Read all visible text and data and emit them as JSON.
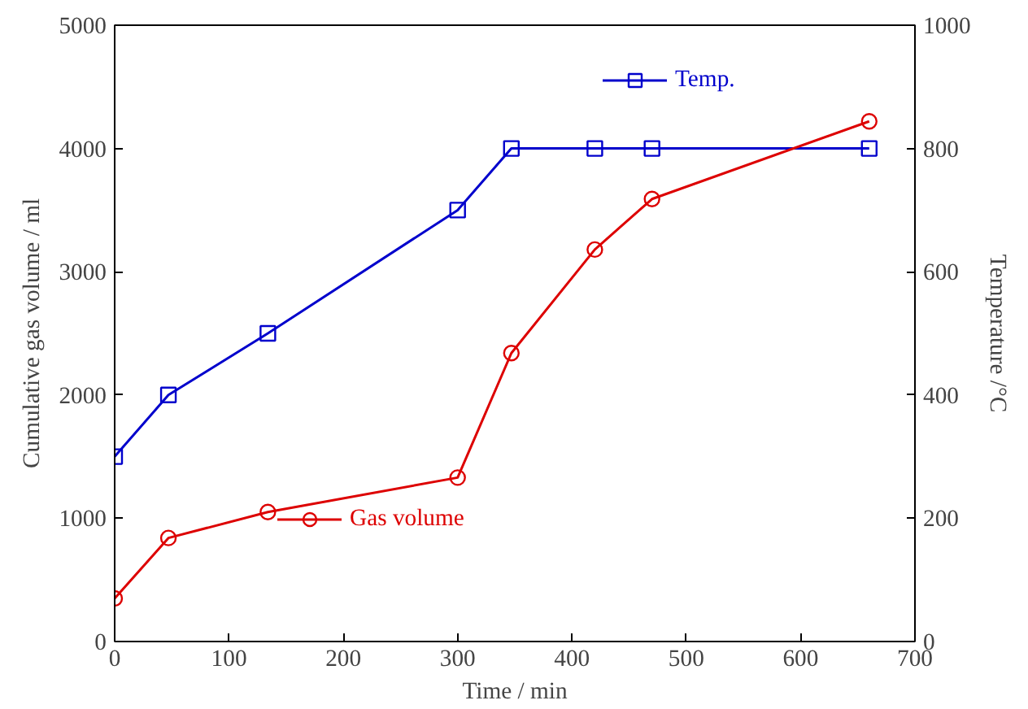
{
  "chart_data": {
    "type": "line",
    "xlabel": "Time / min",
    "ylabel": "Cumulative gas volume / ml",
    "y2label": "Temperature /°C",
    "xlim": [
      0,
      700
    ],
    "xticks": [
      0,
      100,
      200,
      300,
      400,
      500,
      600,
      700
    ],
    "ylim": [
      0,
      5000
    ],
    "yticks": [
      0,
      1000,
      2000,
      3000,
      4000,
      5000
    ],
    "y2lim": [
      0,
      1000
    ],
    "y2ticks": [
      0,
      200,
      400,
      600,
      800,
      1000
    ],
    "grid": false,
    "legend": "top center",
    "series": [
      {
        "name": "Temp.",
        "color": "#0000cc",
        "marker": "square",
        "axis": "y2",
        "x": [
          0,
          47,
          134,
          300,
          347,
          420,
          470,
          660
        ],
        "values": [
          300,
          400,
          500,
          700,
          800,
          800,
          800,
          800
        ]
      },
      {
        "name": "Gas volume",
        "color": "#dd0000",
        "marker": "circle",
        "x": [
          0,
          47,
          134,
          300,
          347,
          420,
          470,
          660
        ],
        "values": [
          350,
          840,
          1050,
          1330,
          2340,
          3180,
          3590,
          4220
        ]
      }
    ]
  }
}
